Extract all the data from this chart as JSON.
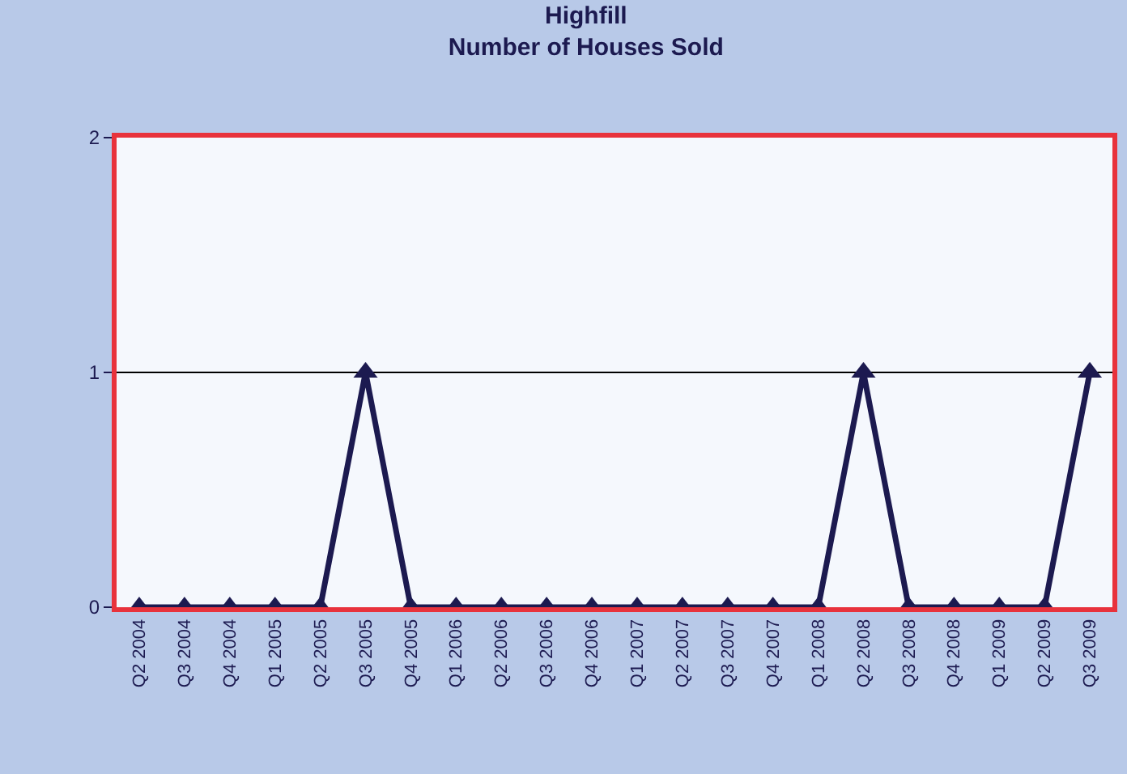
{
  "chart_data": {
    "type": "line",
    "title": "Highfill\nNumber of Houses Sold",
    "categories": [
      "Q2 2004",
      "Q3 2004",
      "Q4 2004",
      "Q1 2005",
      "Q2 2005",
      "Q3 2005",
      "Q4 2005",
      "Q1 2006",
      "Q2 2006",
      "Q3 2006",
      "Q4 2006",
      "Q1 2007",
      "Q2 2007",
      "Q3 2007",
      "Q4 2007",
      "Q1 2008",
      "Q2 2008",
      "Q3 2008",
      "Q4 2008",
      "Q1 2009",
      "Q2 2009",
      "Q3 2009"
    ],
    "series": [
      {
        "color": "#1c1a50",
        "values": [
          0,
          0,
          0,
          0,
          0,
          1,
          0,
          0,
          0,
          0,
          0,
          0,
          0,
          0,
          0,
          0,
          1,
          0,
          0,
          0,
          0,
          1
        ]
      }
    ],
    "ylim": [
      0,
      2
    ],
    "yticks": [
      0,
      1,
      2
    ],
    "grid": "y",
    "marker": "triangle",
    "line_style": "solid"
  }
}
